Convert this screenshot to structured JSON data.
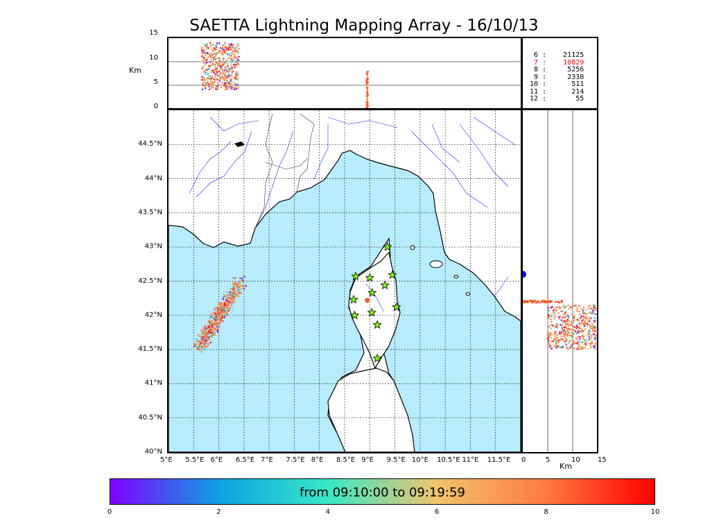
{
  "title": "SAETTA Lightning Mapping Array - 16/10/13",
  "altitude_panel": {
    "ylabel": "Km",
    "yticks": [
      "15",
      "10",
      "5",
      "0"
    ]
  },
  "side_panel": {
    "xlabel": "Km",
    "xticks": [
      "0",
      "5",
      "10",
      "15"
    ]
  },
  "map": {
    "lat_ticks": [
      "44.5°N",
      "44°N",
      "43.5°N",
      "43°N",
      "42.5°N",
      "42°N",
      "41.5°N",
      "41°N",
      "40.5°N",
      "40°N"
    ],
    "lon_ticks": [
      "5°E",
      "5.5°E",
      "6°E",
      "6.5°E",
      "7°E",
      "7.5°E",
      "8°E",
      "8.5°E",
      "9°E",
      "9.5°E",
      "10°E",
      "10.5°E",
      "11°E",
      "11.5°E"
    ],
    "sea_color": "#b6ecfc",
    "station_color": "#7cfc00",
    "stations": [
      {
        "lon": 9.35,
        "lat": 43.0
      },
      {
        "lon": 8.72,
        "lat": 42.57
      },
      {
        "lon": 9.0,
        "lat": 42.55
      },
      {
        "lon": 9.45,
        "lat": 42.59
      },
      {
        "lon": 8.68,
        "lat": 42.23
      },
      {
        "lon": 9.05,
        "lat": 42.33
      },
      {
        "lon": 9.3,
        "lat": 42.44
      },
      {
        "lon": 8.7,
        "lat": 42.0
      },
      {
        "lon": 9.04,
        "lat": 42.04
      },
      {
        "lon": 9.53,
        "lat": 42.12
      },
      {
        "lon": 9.15,
        "lat": 41.86
      },
      {
        "lon": 9.15,
        "lat": 41.37
      }
    ]
  },
  "stats": [
    {
      "label": "6 :",
      "value": "21125",
      "color": "#000000"
    },
    {
      "label": "7 :",
      "value": "10829",
      "color": "#ff0000"
    },
    {
      "label": "8 :",
      "value": "5256",
      "color": "#000000"
    },
    {
      "label": "9 :",
      "value": "2330",
      "color": "#000000"
    },
    {
      "label": "10 :",
      "value": "511",
      "color": "#000000"
    },
    {
      "label": "11 :",
      "value": "214",
      "color": "#000000"
    },
    {
      "label": "12 :",
      "value": "55",
      "color": "#000000"
    }
  ],
  "colorbar": {
    "label": "from 09:10:00 to 09:19:59",
    "ticks": [
      "0",
      "2",
      "4",
      "6",
      "8",
      "10"
    ],
    "colors": [
      "#8000ff",
      "#0ca2e3",
      "#37e9c5",
      "#f0c46d",
      "#ff7a42",
      "#ff0000"
    ]
  },
  "chart_data": {
    "type": "scatter",
    "title": "SAETTA Lightning Mapping Array - 16/10/13",
    "xlim": [
      5,
      12
    ],
    "ylim": [
      40,
      45
    ],
    "altitude_range_km": [
      0,
      15
    ],
    "time_range": "from 09:10:00 to 09:19:59",
    "color_scale": [
      0,
      10
    ],
    "clusters": [
      {
        "lon_range": [
          5.55,
          6.45
        ],
        "lat_range": [
          41.5,
          42.6
        ],
        "alt_km_range": [
          3,
          15
        ],
        "dominant_time": 9
      },
      {
        "lon_range": [
          8.95,
          8.95
        ],
        "lat_range": [
          42.2,
          42.2
        ],
        "alt_km_range": [
          0,
          8
        ],
        "dominant_time": 9
      }
    ]
  }
}
